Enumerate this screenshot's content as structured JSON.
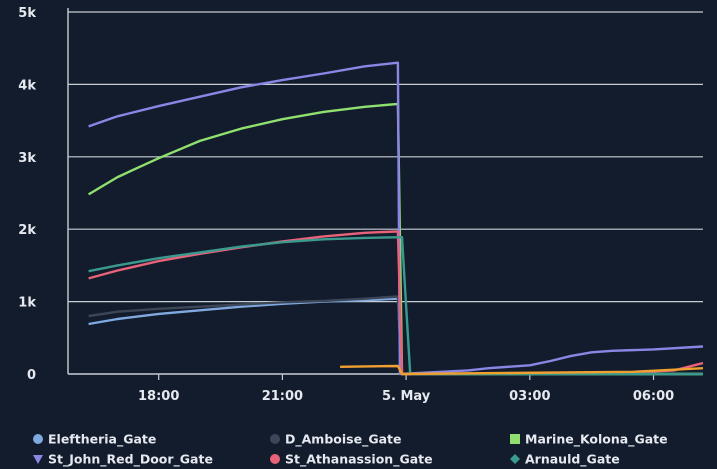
{
  "chart_data": {
    "type": "line",
    "title": "",
    "xlabel": "",
    "ylabel": "",
    "grid": true,
    "legend_position": "bottom",
    "x_domain_hours": [
      15.8,
      31.2
    ],
    "x_ticks": [
      {
        "hour": 18,
        "label": "18:00"
      },
      {
        "hour": 21,
        "label": "21:00"
      },
      {
        "hour": 24,
        "label": "5. May"
      },
      {
        "hour": 27,
        "label": "03:00"
      },
      {
        "hour": 30,
        "label": "06:00"
      }
    ],
    "ylim": [
      0,
      5000
    ],
    "y_ticks": [
      {
        "value": 0,
        "label": "0"
      },
      {
        "value": 1000,
        "label": "1k"
      },
      {
        "value": 2000,
        "label": "2k"
      },
      {
        "value": 3000,
        "label": "3k"
      },
      {
        "value": 4000,
        "label": "4k"
      },
      {
        "value": 5000,
        "label": "5k"
      }
    ],
    "series": [
      {
        "name": "Eleftheria_Gate",
        "color": "#7fa9e0",
        "marker": "circle",
        "points": [
          [
            16.3,
            690
          ],
          [
            17,
            760
          ],
          [
            18,
            830
          ],
          [
            19,
            880
          ],
          [
            20,
            930
          ],
          [
            21,
            970
          ],
          [
            22,
            1000
          ],
          [
            23,
            1020
          ],
          [
            23.8,
            1040
          ],
          [
            23.9,
            0
          ],
          [
            31.2,
            0
          ]
        ]
      },
      {
        "name": "D_Amboise_Gate",
        "color": "#3c4656",
        "marker": "circle",
        "points": [
          [
            16.3,
            800
          ],
          [
            17,
            860
          ],
          [
            18,
            900
          ],
          [
            19,
            930
          ],
          [
            20,
            960
          ],
          [
            21,
            990
          ],
          [
            22,
            1010
          ],
          [
            23,
            1040
          ],
          [
            23.8,
            1070
          ],
          [
            23.9,
            0
          ],
          [
            31.2,
            0
          ]
        ]
      },
      {
        "name": "Marine_Kolona_Gate",
        "color": "#8fe06e",
        "marker": "square",
        "points": [
          [
            16.3,
            2480
          ],
          [
            17,
            2720
          ],
          [
            18,
            2980
          ],
          [
            19,
            3220
          ],
          [
            20,
            3390
          ],
          [
            21,
            3520
          ],
          [
            22,
            3620
          ],
          [
            23,
            3690
          ],
          [
            23.8,
            3730
          ],
          [
            23.9,
            0
          ],
          [
            31.2,
            0
          ]
        ]
      },
      {
        "name": "St_John_Red_Door_Gate",
        "color": "#8a86e6",
        "marker": "triangle-down",
        "points": [
          [
            16.3,
            3420
          ],
          [
            17,
            3560
          ],
          [
            18,
            3700
          ],
          [
            19,
            3830
          ],
          [
            20,
            3960
          ],
          [
            21,
            4060
          ],
          [
            22,
            4150
          ],
          [
            23,
            4250
          ],
          [
            23.8,
            4300
          ],
          [
            23.85,
            0
          ],
          [
            25.5,
            50
          ],
          [
            26,
            80
          ],
          [
            27,
            120
          ],
          [
            27.5,
            180
          ],
          [
            28,
            250
          ],
          [
            28.5,
            300
          ],
          [
            29,
            320
          ],
          [
            30,
            340
          ],
          [
            31.2,
            380
          ]
        ]
      },
      {
        "name": "St_Athanassion_Gate",
        "color": "#e8637a",
        "marker": "circle",
        "points": [
          [
            16.3,
            1320
          ],
          [
            17,
            1430
          ],
          [
            18,
            1560
          ],
          [
            19,
            1660
          ],
          [
            20,
            1750
          ],
          [
            21,
            1830
          ],
          [
            22,
            1900
          ],
          [
            23,
            1950
          ],
          [
            23.8,
            1970
          ],
          [
            23.9,
            0
          ],
          [
            29,
            10
          ],
          [
            30.5,
            50
          ],
          [
            31.2,
            150
          ]
        ]
      },
      {
        "name": "Arnauld_Gate",
        "color": "#3a9a8e",
        "marker": "diamond",
        "points": [
          [
            16.3,
            1420
          ],
          [
            17,
            1500
          ],
          [
            18,
            1600
          ],
          [
            19,
            1680
          ],
          [
            20,
            1760
          ],
          [
            21,
            1820
          ],
          [
            22,
            1860
          ],
          [
            23,
            1880
          ],
          [
            23.9,
            1890
          ],
          [
            24.1,
            0
          ],
          [
            31.2,
            0
          ]
        ]
      },
      {
        "name": "",
        "color": "#f0a030",
        "marker": "none",
        "points": [
          [
            22.4,
            100
          ],
          [
            23.8,
            110
          ],
          [
            23.9,
            0
          ],
          [
            29.5,
            30
          ],
          [
            31.2,
            80
          ]
        ]
      }
    ]
  }
}
